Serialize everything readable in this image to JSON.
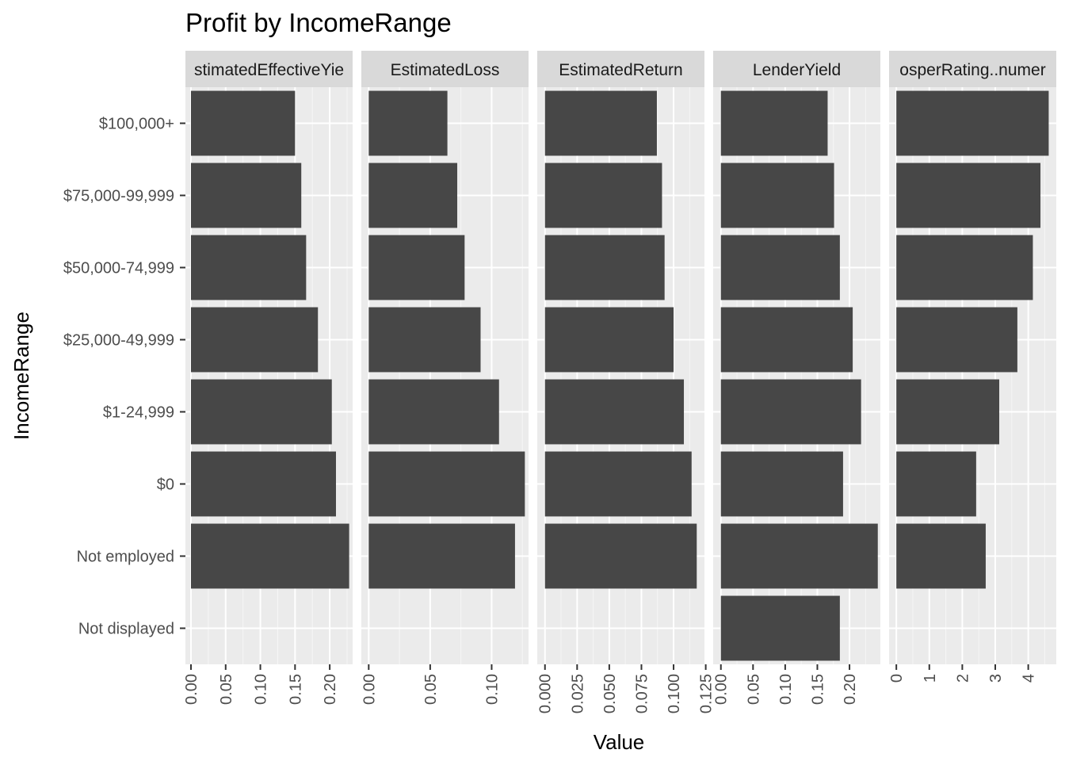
{
  "chart_data": {
    "type": "bar",
    "title": "Profit by IncomeRange",
    "xlabel": "Value",
    "ylabel": "IncomeRange",
    "orientation": "horizontal",
    "categories": [
      "Not displayed",
      "Not employed",
      "$0",
      "$1-24,999",
      "$25,000-49,999",
      "$50,000-74,999",
      "$75,000-99,999",
      "$100,000+"
    ],
    "facets": [
      {
        "label": "stimatedEffectiveYie",
        "xlim": [
          -0.008,
          0.233
        ],
        "ticks": [
          0,
          0.05,
          0.1,
          0.15,
          0.2
        ],
        "tick_labels": [
          "0.00",
          "0.05",
          "0.10",
          "0.15",
          "0.20"
        ],
        "values": [
          null,
          0.228,
          0.209,
          0.203,
          0.183,
          0.166,
          0.159,
          0.15
        ]
      },
      {
        "label": "EstimatedLoss",
        "xlim": [
          -0.006,
          0.13
        ],
        "ticks": [
          0,
          0.05,
          0.1
        ],
        "tick_labels": [
          "0.00",
          "0.05",
          "0.10"
        ],
        "values": [
          null,
          0.119,
          0.127,
          0.106,
          0.091,
          0.078,
          0.072,
          0.064
        ]
      },
      {
        "label": "EstimatedReturn",
        "xlim": [
          -0.006,
          0.124
        ],
        "ticks": [
          0,
          0.025,
          0.05,
          0.075,
          0.1,
          0.125
        ],
        "tick_labels": [
          "0.000",
          "0.025",
          "0.050",
          "0.075",
          "0.100",
          "0.125"
        ],
        "values": [
          null,
          0.118,
          0.114,
          0.108,
          0.1,
          0.093,
          0.091,
          0.087
        ]
      },
      {
        "label": "LenderYield",
        "xlim": [
          -0.012,
          0.248
        ],
        "ticks": [
          0,
          0.05,
          0.1,
          0.15,
          0.2
        ],
        "tick_labels": [
          "0.00",
          "0.05",
          "0.10",
          "0.15",
          "0.20"
        ],
        "values": [
          0.185,
          0.244,
          0.19,
          0.218,
          0.205,
          0.185,
          0.176,
          0.166
        ]
      },
      {
        "label": "osperRating..numer",
        "xlim": [
          -0.22,
          4.85
        ],
        "ticks": [
          0,
          1,
          2,
          3,
          4
        ],
        "tick_labels": [
          "0",
          "1",
          "2",
          "3",
          "4"
        ],
        "values": [
          null,
          2.71,
          2.42,
          3.12,
          3.67,
          4.14,
          4.37,
          4.62
        ]
      }
    ],
    "colors": {
      "bar": "#474747",
      "panel": "#ebebeb",
      "strip": "#d9d9d9",
      "grid_major": "#ffffff"
    },
    "grid": true,
    "legend": "none"
  }
}
